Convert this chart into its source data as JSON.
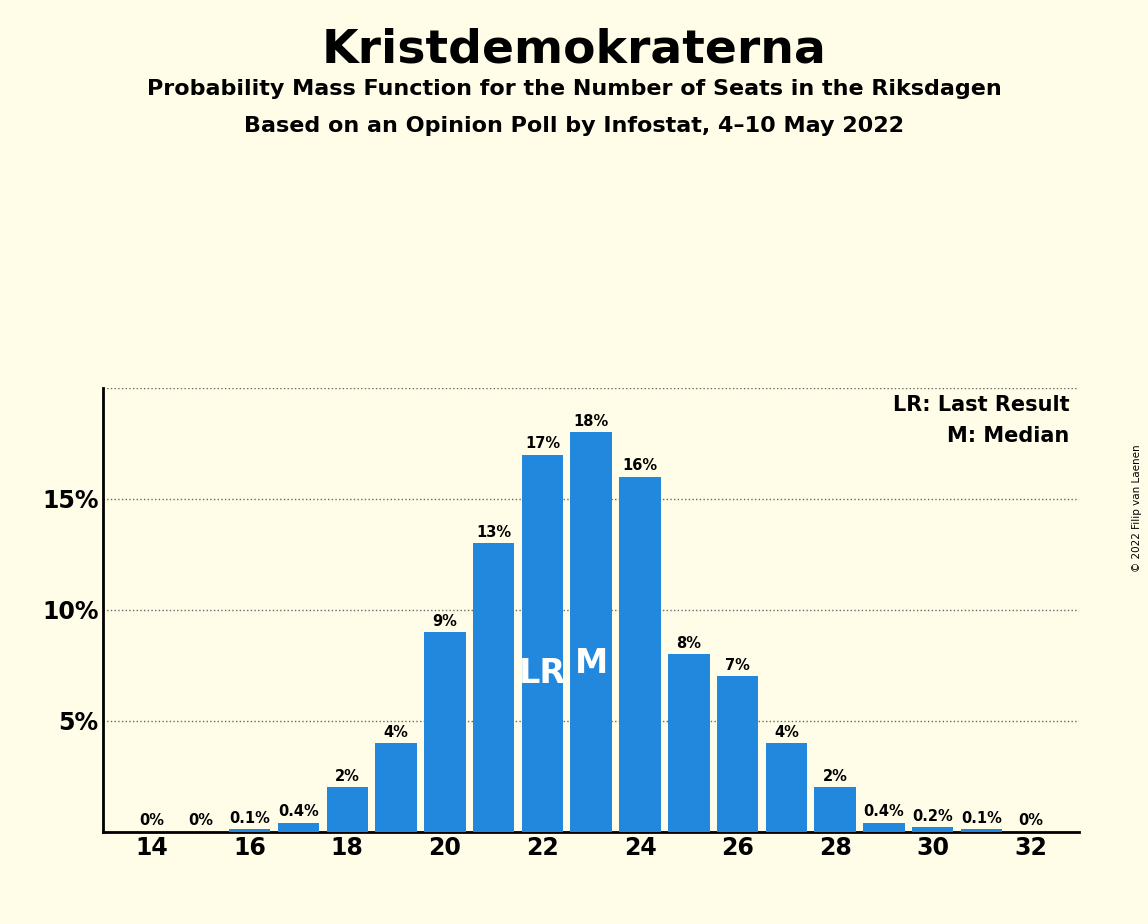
{
  "title": "Kristdemokraterna",
  "subtitle1": "Probability Mass Function for the Number of Seats in the Riksdagen",
  "subtitle2": "Based on an Opinion Poll by Infostat, 4–10 May 2022",
  "copyright": "© 2022 Filip van Laenen",
  "seats": [
    14,
    15,
    16,
    17,
    18,
    19,
    20,
    21,
    22,
    23,
    24,
    25,
    26,
    27,
    28,
    29,
    30,
    31,
    32
  ],
  "probabilities": [
    0.0,
    0.0,
    0.001,
    0.004,
    0.02,
    0.04,
    0.09,
    0.13,
    0.17,
    0.18,
    0.16,
    0.08,
    0.07,
    0.04,
    0.02,
    0.004,
    0.002,
    0.001,
    0.0
  ],
  "labels": [
    "0%",
    "0%",
    "0.1%",
    "0.4%",
    "2%",
    "4%",
    "9%",
    "13%",
    "17%",
    "18%",
    "16%",
    "8%",
    "7%",
    "4%",
    "2%",
    "0.4%",
    "0.2%",
    "0.1%",
    "0%"
  ],
  "bar_color": "#2288dd",
  "background_color": "#fffde8",
  "last_result_seat": 22,
  "median_seat": 23,
  "lr_label": "LR",
  "m_label": "M",
  "legend_lr": "LR: Last Result",
  "legend_m": "M: Median",
  "ylim": [
    0,
    0.2
  ],
  "yticks": [
    0.0,
    0.05,
    0.1,
    0.15,
    0.2
  ],
  "ytick_labels": [
    "",
    "5%",
    "10%",
    "15%",
    ""
  ],
  "xticks": [
    14,
    16,
    18,
    20,
    22,
    24,
    26,
    28,
    30,
    32
  ]
}
